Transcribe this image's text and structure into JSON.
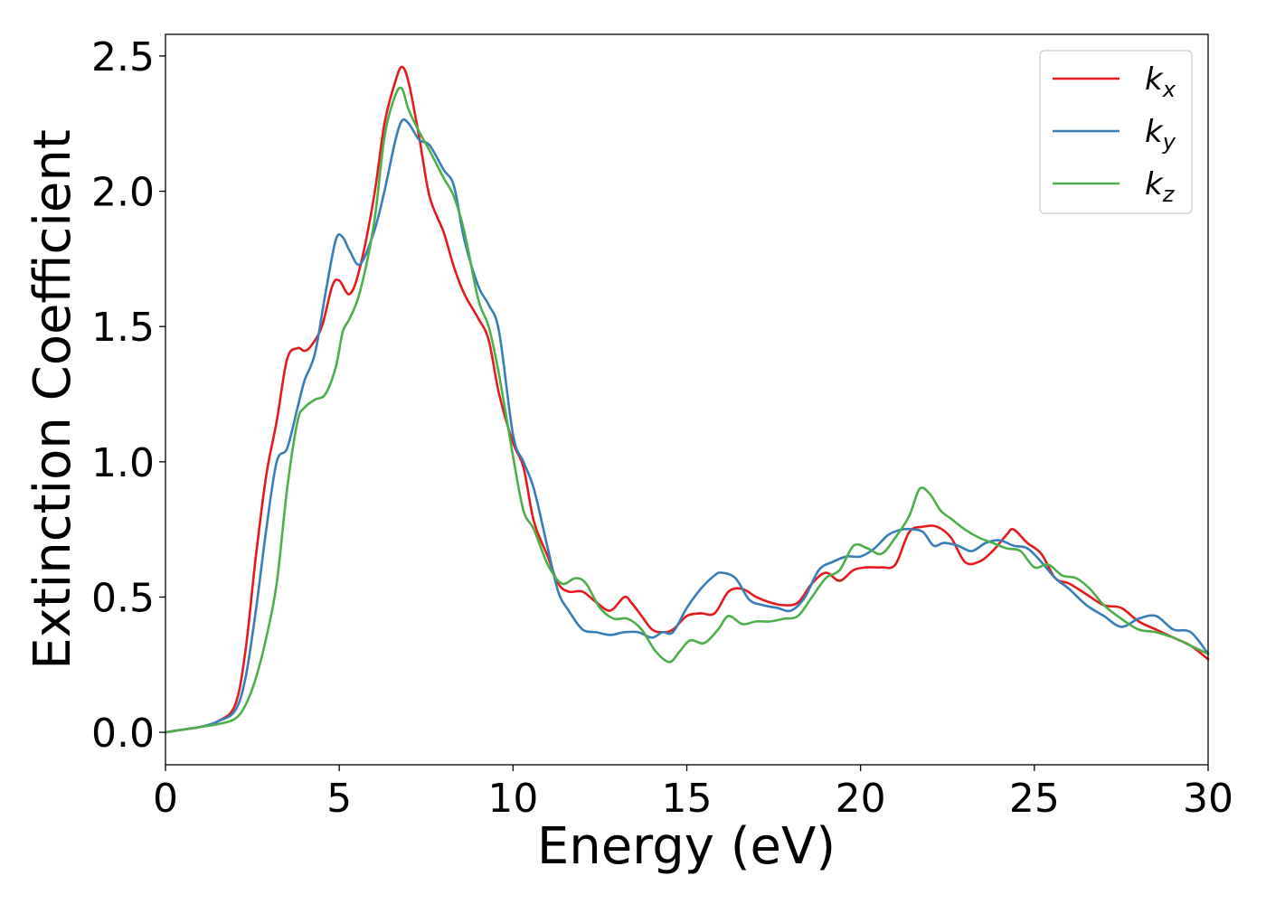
{
  "chart_data": {
    "type": "line",
    "title": "",
    "xlabel": "Energy (eV)",
    "ylabel": "Extinction Coefficient",
    "xlim": [
      0,
      30
    ],
    "ylim": [
      -0.12,
      2.58
    ],
    "xticks": [
      0,
      5,
      10,
      15,
      20,
      25,
      30
    ],
    "xtick_labels": [
      "0",
      "5",
      "10",
      "15",
      "20",
      "25",
      "30"
    ],
    "yticks": [
      0.0,
      0.5,
      1.0,
      1.5,
      2.0,
      2.5
    ],
    "ytick_labels": [
      "0.0",
      "0.5",
      "1.0",
      "1.5",
      "2.0",
      "2.5"
    ],
    "grid": false,
    "legend_position": "top-right",
    "series": [
      {
        "name": "k_x",
        "label_base": "k",
        "label_sub": "x",
        "color": "#e41a1c",
        "x": [
          0,
          0.5,
          1,
          1.5,
          2,
          2.3,
          2.6,
          2.9,
          3.2,
          3.5,
          3.8,
          4.0,
          4.2,
          4.5,
          4.8,
          5.0,
          5.3,
          5.6,
          6.0,
          6.3,
          6.6,
          6.8,
          7.0,
          7.3,
          7.6,
          8.0,
          8.3,
          8.6,
          9.0,
          9.3,
          9.6,
          10.0,
          10.3,
          10.6,
          11.0,
          11.3,
          11.6,
          12.0,
          12.4,
          12.8,
          13.2,
          13.4,
          13.7,
          14.0,
          14.3,
          14.6,
          15.0,
          15.4,
          15.8,
          16.2,
          16.6,
          17.0,
          17.4,
          17.8,
          18.2,
          18.6,
          19.0,
          19.4,
          19.8,
          20.2,
          20.6,
          21.0,
          21.4,
          21.8,
          22.2,
          22.6,
          23.0,
          23.4,
          23.8,
          24.2,
          24.4,
          24.8,
          25.2,
          25.6,
          26.0,
          26.5,
          27.0,
          27.5,
          28.0,
          28.5,
          29.0,
          29.5,
          30.0
        ],
        "y": [
          0.0,
          0.01,
          0.02,
          0.04,
          0.1,
          0.3,
          0.65,
          0.95,
          1.15,
          1.38,
          1.42,
          1.41,
          1.43,
          1.5,
          1.65,
          1.67,
          1.62,
          1.72,
          1.98,
          2.25,
          2.4,
          2.46,
          2.4,
          2.2,
          1.98,
          1.85,
          1.72,
          1.62,
          1.53,
          1.45,
          1.25,
          1.07,
          0.98,
          0.78,
          0.65,
          0.55,
          0.52,
          0.52,
          0.48,
          0.45,
          0.5,
          0.48,
          0.43,
          0.38,
          0.37,
          0.38,
          0.43,
          0.44,
          0.44,
          0.52,
          0.53,
          0.5,
          0.48,
          0.47,
          0.48,
          0.55,
          0.59,
          0.56,
          0.6,
          0.61,
          0.61,
          0.62,
          0.74,
          0.76,
          0.76,
          0.72,
          0.63,
          0.63,
          0.67,
          0.73,
          0.75,
          0.7,
          0.66,
          0.57,
          0.55,
          0.51,
          0.47,
          0.46,
          0.41,
          0.38,
          0.35,
          0.32,
          0.27
        ]
      },
      {
        "name": "k_y",
        "label_base": "k",
        "label_sub": "y",
        "color": "#377eb8",
        "x": [
          0,
          0.5,
          1,
          1.5,
          2,
          2.3,
          2.6,
          2.9,
          3.2,
          3.5,
          3.8,
          4.0,
          4.3,
          4.6,
          4.9,
          5.1,
          5.3,
          5.6,
          6.0,
          6.3,
          6.6,
          6.8,
          7.0,
          7.3,
          7.6,
          8.0,
          8.3,
          8.6,
          9.0,
          9.3,
          9.6,
          10.0,
          10.3,
          10.6,
          11.0,
          11.3,
          11.6,
          12.0,
          12.4,
          12.8,
          13.2,
          13.6,
          14.0,
          14.3,
          14.6,
          15.0,
          15.4,
          15.8,
          16.0,
          16.4,
          16.8,
          17.2,
          17.6,
          18.0,
          18.4,
          18.8,
          19.2,
          19.6,
          20.0,
          20.4,
          20.8,
          21.2,
          21.5,
          21.8,
          22.1,
          22.4,
          22.8,
          23.2,
          23.6,
          24.0,
          24.4,
          24.8,
          25.2,
          25.6,
          26.0,
          26.5,
          27.0,
          27.5,
          28.0,
          28.5,
          29.0,
          29.5,
          30.0
        ],
        "y": [
          0.0,
          0.01,
          0.02,
          0.04,
          0.08,
          0.2,
          0.45,
          0.75,
          1.0,
          1.05,
          1.2,
          1.3,
          1.4,
          1.62,
          1.82,
          1.83,
          1.78,
          1.73,
          1.85,
          2.0,
          2.18,
          2.26,
          2.25,
          2.19,
          2.17,
          2.08,
          2.02,
          1.82,
          1.65,
          1.58,
          1.48,
          1.1,
          1.0,
          0.9,
          0.68,
          0.52,
          0.45,
          0.38,
          0.37,
          0.36,
          0.37,
          0.37,
          0.35,
          0.37,
          0.37,
          0.46,
          0.53,
          0.58,
          0.59,
          0.57,
          0.49,
          0.47,
          0.46,
          0.45,
          0.5,
          0.6,
          0.63,
          0.65,
          0.65,
          0.68,
          0.73,
          0.75,
          0.75,
          0.74,
          0.69,
          0.7,
          0.69,
          0.67,
          0.7,
          0.71,
          0.69,
          0.68,
          0.63,
          0.57,
          0.53,
          0.47,
          0.43,
          0.39,
          0.42,
          0.43,
          0.38,
          0.37,
          0.29
        ]
      },
      {
        "name": "k_z",
        "label_base": "k",
        "label_sub": "z",
        "color": "#4daf4a",
        "x": [
          0,
          0.5,
          1,
          1.5,
          2,
          2.3,
          2.6,
          2.9,
          3.2,
          3.5,
          3.8,
          4.0,
          4.3,
          4.6,
          4.9,
          5.1,
          5.3,
          5.6,
          6.0,
          6.3,
          6.6,
          6.8,
          7.0,
          7.3,
          7.6,
          8.0,
          8.3,
          8.6,
          9.0,
          9.3,
          9.6,
          10.0,
          10.3,
          10.6,
          11.0,
          11.4,
          11.8,
          12.1,
          12.5,
          12.9,
          13.3,
          13.7,
          14.1,
          14.5,
          14.8,
          15.1,
          15.5,
          15.9,
          16.2,
          16.6,
          17.0,
          17.4,
          17.8,
          18.2,
          18.6,
          19.0,
          19.4,
          19.8,
          20.2,
          20.6,
          21.0,
          21.4,
          21.7,
          22.0,
          22.3,
          22.6,
          23.0,
          23.4,
          23.8,
          24.2,
          24.6,
          25.0,
          25.4,
          25.8,
          26.2,
          26.6,
          27.0,
          27.5,
          28.0,
          28.5,
          29.0,
          29.5,
          30.0
        ],
        "y": [
          0.0,
          0.01,
          0.02,
          0.03,
          0.05,
          0.1,
          0.2,
          0.35,
          0.55,
          0.9,
          1.15,
          1.2,
          1.23,
          1.25,
          1.35,
          1.48,
          1.53,
          1.63,
          1.88,
          2.2,
          2.35,
          2.38,
          2.3,
          2.22,
          2.15,
          2.05,
          1.98,
          1.85,
          1.6,
          1.5,
          1.32,
          1.02,
          0.82,
          0.75,
          0.62,
          0.55,
          0.57,
          0.55,
          0.46,
          0.42,
          0.42,
          0.38,
          0.3,
          0.26,
          0.3,
          0.34,
          0.33,
          0.38,
          0.43,
          0.4,
          0.41,
          0.41,
          0.42,
          0.43,
          0.5,
          0.57,
          0.6,
          0.69,
          0.68,
          0.66,
          0.72,
          0.8,
          0.9,
          0.88,
          0.82,
          0.79,
          0.75,
          0.72,
          0.7,
          0.68,
          0.67,
          0.61,
          0.62,
          0.58,
          0.57,
          0.53,
          0.47,
          0.42,
          0.38,
          0.37,
          0.35,
          0.32,
          0.29
        ]
      }
    ]
  }
}
